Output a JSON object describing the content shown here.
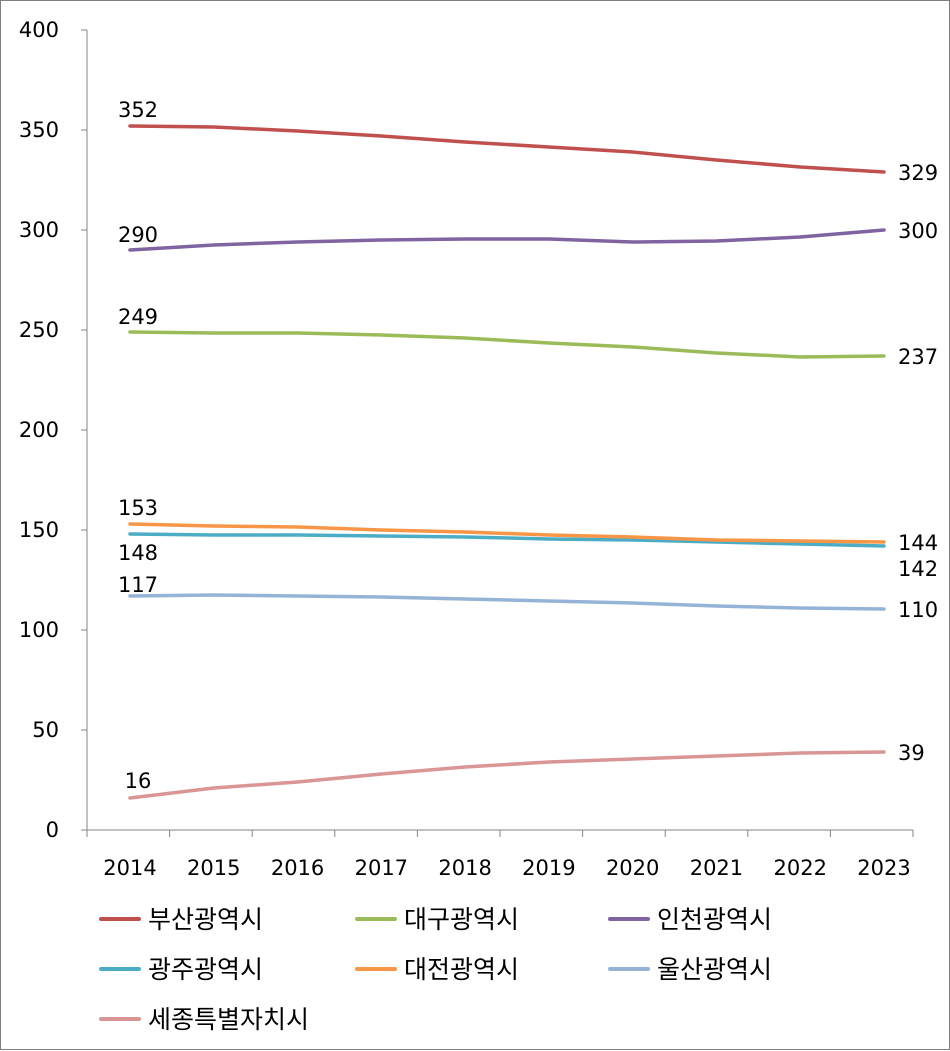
{
  "chart_data": {
    "type": "line",
    "categories": [
      "2014",
      "2015",
      "2016",
      "2017",
      "2018",
      "2019",
      "2020",
      "2021",
      "2022",
      "2023"
    ],
    "ylim": [
      0,
      400
    ],
    "yticks": [
      "0",
      "50",
      "100",
      "150",
      "200",
      "250",
      "300",
      "350",
      "400"
    ],
    "grid": false,
    "legend_position": "bottom",
    "series": [
      {
        "name": "부산광역시",
        "color": "#c0504d",
        "values": [
          352,
          351.5,
          349.5,
          347,
          344,
          341.5,
          339,
          335,
          331.5,
          329
        ],
        "start_label": "352",
        "end_label": "329"
      },
      {
        "name": "대구광역시",
        "color": "#9bbb59",
        "values": [
          249,
          248.5,
          248.5,
          247.5,
          246,
          243.5,
          241.5,
          238.5,
          236.5,
          237
        ],
        "start_label": "249",
        "end_label": "237"
      },
      {
        "name": "인천광역시",
        "color": "#8064a2",
        "values": [
          290,
          292.5,
          294,
          295,
          295.5,
          295.5,
          294,
          294.5,
          296.5,
          300
        ],
        "start_label": "290",
        "end_label": "300"
      },
      {
        "name": "광주광역시",
        "color": "#4bacc6",
        "values": [
          148,
          147.5,
          147.5,
          147,
          146.5,
          145.5,
          145,
          144,
          143,
          142
        ],
        "start_label": "148",
        "end_label": "142"
      },
      {
        "name": "대전광역시",
        "color": "#f79646",
        "values": [
          153,
          152,
          151.5,
          150,
          149,
          147.5,
          146.5,
          145,
          144.5,
          144
        ],
        "start_label": "153",
        "end_label": "144"
      },
      {
        "name": "울산광역시",
        "color": "#95b3d7",
        "values": [
          117,
          117.5,
          117,
          116.5,
          115.5,
          114.5,
          113.5,
          112,
          111,
          110.5
        ],
        "start_label": "117",
        "end_label": "110"
      },
      {
        "name": "세종특별자치시",
        "color": "#d99694",
        "values": [
          16,
          21,
          24,
          28,
          31.5,
          34,
          35.5,
          37,
          38.5,
          39
        ],
        "start_label": "16",
        "end_label": "39"
      }
    ]
  }
}
